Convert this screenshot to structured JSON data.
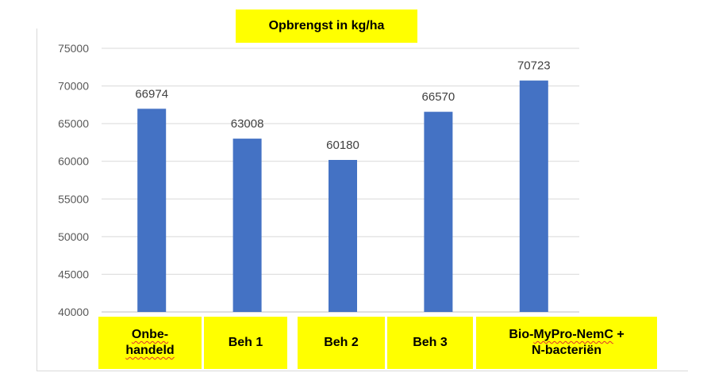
{
  "chart_data": {
    "type": "bar",
    "title": "Opbrengst in kg/ha",
    "categories": [
      "Onbe-\nhandeld",
      "Beh 1",
      "Beh 2",
      "Beh 3",
      "Bio-MyPro-NemC +\nN-bacteriën"
    ],
    "values": [
      66974,
      63008,
      60180,
      66570,
      70723
    ],
    "data_labels": [
      "66974",
      "63008",
      "60180",
      "66570",
      "70723"
    ],
    "ylim": [
      40000,
      75000
    ],
    "yticks": [
      "75000",
      "70000",
      "65000",
      "60000",
      "55000",
      "50000",
      "45000",
      "40000"
    ],
    "xlabel": "",
    "ylabel": "",
    "grid": true,
    "bar_color": "#4472c4",
    "label_box_color": "#ffff00"
  }
}
